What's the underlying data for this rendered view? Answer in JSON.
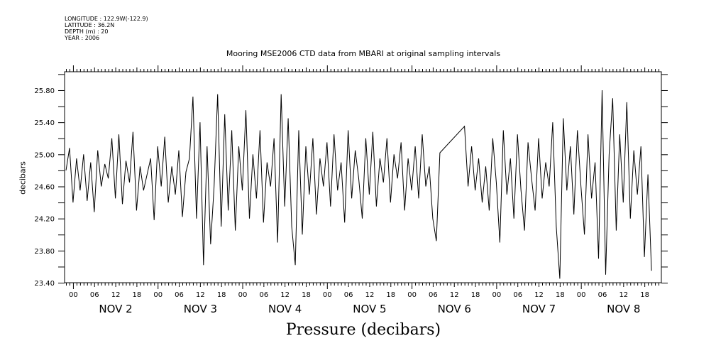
{
  "header": {
    "longitude": "LONGITUDE : 122.9W(-122.9)",
    "latitude": "LATITUDE : 36.2N",
    "depth": "DEPTH (m) : 20",
    "year": "YEAR : 2006"
  },
  "chart_data": {
    "type": "line",
    "title": "Mooring MSE2006 CTD data from MBARI at original sampling intervals",
    "xlabel": "Pressure (decibars)",
    "ylabel": "decibars",
    "x_units": "hours since NOV 2 00:00",
    "xlim": [
      -2.4,
      166.8
    ],
    "ylim": [
      23.4,
      26.03
    ],
    "y_ticks": [
      23.4,
      23.6,
      23.8,
      24.0,
      24.2,
      24.4,
      24.6,
      24.8,
      25.0,
      25.2,
      25.4,
      25.6,
      25.8,
      26.0
    ],
    "y_tick_labels": [
      "23.40",
      "23.80",
      "24.20",
      "24.60",
      "25.00",
      "25.40",
      "25.80"
    ],
    "y_tick_label_values": [
      23.4,
      23.8,
      24.2,
      24.6,
      25.0,
      25.4,
      25.8
    ],
    "x_hour_labels": [
      "00",
      "06",
      "12",
      "18"
    ],
    "x_day_labels": [
      "NOV  2",
      "NOV  3",
      "NOV  4",
      "NOV  5",
      "NOV  6",
      "NOV  7",
      "NOV  8"
    ],
    "grid": false,
    "connect_gaps": true,
    "x_start": -2,
    "x_step": 1,
    "values": [
      24.8,
      25.08,
      24.4,
      24.95,
      24.55,
      25.0,
      24.42,
      24.9,
      24.28,
      25.05,
      24.6,
      24.88,
      24.7,
      25.2,
      24.45,
      25.25,
      24.38,
      24.92,
      24.65,
      25.28,
      24.3,
      24.85,
      24.55,
      24.75,
      24.95,
      24.18,
      25.1,
      24.6,
      25.22,
      24.4,
      24.85,
      24.5,
      25.05,
      24.22,
      24.78,
      24.95,
      25.72,
      24.2,
      25.4,
      23.62,
      25.1,
      23.88,
      24.6,
      25.75,
      24.1,
      25.5,
      24.3,
      25.3,
      24.05,
      25.1,
      24.55,
      25.55,
      24.2,
      25.0,
      24.45,
      25.3,
      24.15,
      24.9,
      24.6,
      25.2,
      23.9,
      25.75,
      24.35,
      25.45,
      24.1,
      23.62,
      25.3,
      24.0,
      25.1,
      24.5,
      25.2,
      24.25,
      24.95,
      24.6,
      25.15,
      24.35,
      25.25,
      24.55,
      24.9,
      24.15,
      25.3,
      24.45,
      25.05,
      24.7,
      24.2,
      25.2,
      24.5,
      25.28,
      24.35,
      24.95,
      24.65,
      25.2,
      24.4,
      25.0,
      24.7,
      25.15,
      24.3,
      24.95,
      24.55,
      25.1,
      24.45,
      25.25,
      24.6,
      24.85,
      24.2,
      23.92,
      25.02,
      null,
      null,
      null,
      null,
      null,
      null,
      25.35,
      24.6,
      25.1,
      24.55,
      24.95,
      24.4,
      24.85,
      24.3,
      25.2,
      24.65,
      23.9,
      25.3,
      24.5,
      24.95,
      24.2,
      25.25,
      24.55,
      24.05,
      25.15,
      24.7,
      24.3,
      25.2,
      24.45,
      24.9,
      24.6,
      25.4,
      24.1,
      23.45,
      25.45,
      24.55,
      25.1,
      24.25,
      25.3,
      24.6,
      24.0,
      25.25,
      24.45,
      24.9,
      23.7,
      25.8,
      23.5,
      25.0,
      25.7,
      24.05,
      25.25,
      24.4,
      25.65,
      24.2,
      25.05,
      24.5,
      25.1,
      23.72,
      24.75,
      23.55
    ]
  }
}
